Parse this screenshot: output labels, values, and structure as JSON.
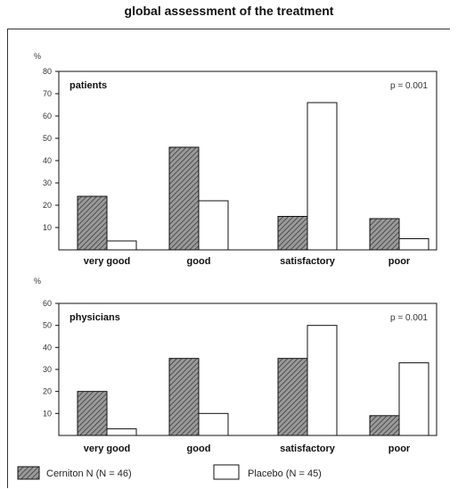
{
  "title": "global assessment of the treatment",
  "legend": {
    "cerniton": "Cerniton N (N = 46)",
    "placebo": "Placebo (N = 45)"
  },
  "colors": {
    "cerniton_fill": "#8a8a8a",
    "placebo_fill": "#ffffff",
    "stroke": "#111111"
  },
  "chart_data": [
    {
      "type": "bar",
      "panel_label": "patients",
      "p_value": "p = 0.001",
      "y_unit": "%",
      "categories": [
        "very good",
        "good",
        "satisfactory",
        "poor"
      ],
      "series": [
        {
          "name": "Cerniton N (N = 46)",
          "values": [
            24,
            46,
            15,
            14
          ]
        },
        {
          "name": "Placebo (N = 45)",
          "values": [
            4,
            22,
            66,
            5
          ]
        }
      ],
      "ylim": [
        0,
        80
      ],
      "yticks": [
        10,
        20,
        30,
        40,
        50,
        60,
        70,
        80
      ],
      "legend_position": "bottom"
    },
    {
      "type": "bar",
      "panel_label": "physicians",
      "p_value": "p = 0.001",
      "y_unit": "%",
      "categories": [
        "very good",
        "good",
        "satisfactory",
        "poor"
      ],
      "series": [
        {
          "name": "Cerniton N (N = 46)",
          "values": [
            20,
            35,
            35,
            9
          ]
        },
        {
          "name": "Placebo (N = 45)",
          "values": [
            3,
            10,
            50,
            33
          ]
        }
      ],
      "ylim": [
        0,
        60
      ],
      "yticks": [
        10,
        20,
        30,
        40,
        50,
        60
      ],
      "legend_position": "bottom"
    }
  ]
}
